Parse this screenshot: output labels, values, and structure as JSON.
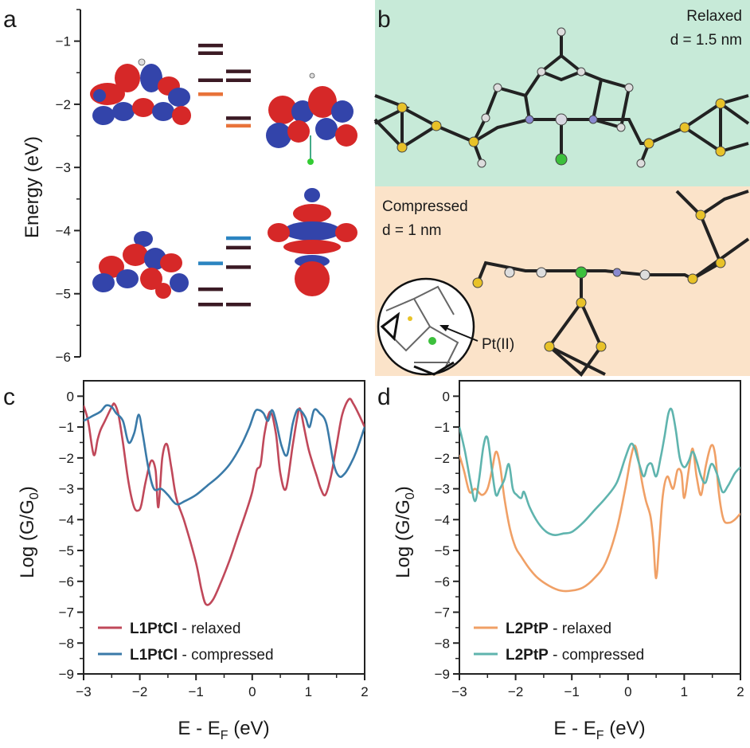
{
  "panels": {
    "a": "a",
    "b": "b",
    "c": "c",
    "d": "d"
  },
  "panel_a": {
    "ylabel": "Energy (eV)",
    "yticks": [
      -1,
      -2,
      -3,
      -4,
      -5,
      -6
    ],
    "ytick_labels": [
      "−1",
      "−2",
      "−3",
      "−4",
      "−5",
      "−6"
    ],
    "ylim": [
      -6,
      -0.5
    ],
    "levels_left": [
      {
        "e": -1.07,
        "color": "#3b1a24"
      },
      {
        "e": -1.19,
        "color": "#3b1a24"
      },
      {
        "e": -1.62,
        "color": "#3b1a24"
      },
      {
        "e": -1.84,
        "color": "#e8733a"
      },
      {
        "e": -4.52,
        "color": "#2b84c1"
      },
      {
        "e": -4.93,
        "color": "#3b1a24"
      },
      {
        "e": -5.17,
        "color": "#3b1a24"
      }
    ],
    "levels_right": [
      {
        "e": -1.48,
        "color": "#3b1a24"
      },
      {
        "e": -1.62,
        "color": "#3b1a24"
      },
      {
        "e": -2.22,
        "color": "#3b1a24"
      },
      {
        "e": -2.34,
        "color": "#e8733a"
      },
      {
        "e": -4.12,
        "color": "#2b84c1"
      },
      {
        "e": -4.27,
        "color": "#3b1a24"
      },
      {
        "e": -4.58,
        "color": "#3b1a24"
      },
      {
        "e": -5.17,
        "color": "#3b1a24"
      }
    ]
  },
  "panel_b": {
    "relaxed_label": "Relaxed",
    "relaxed_d": "d = 1.5 nm",
    "compressed_label": "Compressed",
    "compressed_d": "d = 1 nm",
    "pt_label": "Pt(II)",
    "relaxed_bg": "#c7ead8",
    "compressed_bg": "#fbe3c9"
  },
  "chart_data": [
    {
      "type": "line",
      "panel": "c",
      "xlabel_main": "E - E",
      "xlabel_sub": "F",
      "xlabel_unit": " (eV)",
      "ylabel_main": "Log (G/G",
      "ylabel_sub": "0",
      "ylabel_close": ")",
      "xlim": [
        -3,
        2
      ],
      "ylim": [
        -9,
        0.5
      ],
      "xticks": [
        -3,
        -2,
        -1,
        0,
        1,
        2
      ],
      "xtick_labels": [
        "−3",
        "−2",
        "−1",
        "0",
        "1",
        "2"
      ],
      "yticks": [
        0,
        -1,
        -2,
        -3,
        -4,
        -5,
        -6,
        -7,
        -8,
        -9
      ],
      "ytick_labels": [
        "0",
        "−1",
        "−2",
        "−3",
        "−4",
        "−5",
        "−6",
        "−7",
        "−8",
        "−9"
      ],
      "series": [
        {
          "name": "L1PtCl",
          "suffix": " - relaxed",
          "color": "#c0485a",
          "x": [
            -3.0,
            -2.92,
            -2.82,
            -2.75,
            -2.7,
            -2.62,
            -2.5,
            -2.45,
            -2.38,
            -2.3,
            -2.2,
            -2.1,
            -2.02,
            -1.97,
            -1.9,
            -1.8,
            -1.72,
            -1.67,
            -1.6,
            -1.52,
            -1.44,
            -1.35,
            -1.2,
            -1.0,
            -0.9,
            -0.82,
            -0.7,
            -0.55,
            -0.4,
            -0.25,
            -0.1,
            0.0,
            0.08,
            0.15,
            0.22,
            0.32,
            0.42,
            0.5,
            0.6,
            0.72,
            0.8,
            0.85,
            0.92,
            1.0,
            1.08,
            1.15,
            1.22,
            1.3,
            1.4,
            1.5,
            1.6,
            1.72,
            1.8,
            1.9,
            2.0
          ],
          "y": [
            -0.3,
            -0.8,
            -1.9,
            -1.4,
            -1.1,
            -0.8,
            -0.35,
            -0.25,
            -0.6,
            -1.5,
            -2.8,
            -3.6,
            -3.7,
            -3.5,
            -2.8,
            -2.1,
            -2.4,
            -3.6,
            -2.0,
            -1.55,
            -2.3,
            -3.3,
            -4.1,
            -5.4,
            -6.3,
            -6.75,
            -6.6,
            -6.0,
            -5.3,
            -4.5,
            -3.7,
            -3.1,
            -2.4,
            -2.2,
            -1.2,
            -0.5,
            -1.2,
            -2.5,
            -3.0,
            -1.6,
            -0.7,
            -0.4,
            -1.0,
            -1.7,
            -2.2,
            -2.6,
            -3.0,
            -3.2,
            -2.6,
            -1.6,
            -0.6,
            -0.1,
            -0.25,
            -0.6,
            -1.0
          ]
        },
        {
          "name": "L1PtCl",
          "suffix": " - compressed",
          "color": "#3a7aa8",
          "x": [
            -3.0,
            -2.85,
            -2.7,
            -2.6,
            -2.5,
            -2.42,
            -2.3,
            -2.2,
            -2.1,
            -2.02,
            -1.95,
            -1.85,
            -1.75,
            -1.62,
            -1.5,
            -1.35,
            -1.2,
            -1.0,
            -0.8,
            -0.6,
            -0.4,
            -0.2,
            -0.05,
            0.05,
            0.12,
            0.2,
            0.28,
            0.35,
            0.42,
            0.52,
            0.62,
            0.72,
            0.8,
            0.88,
            0.95,
            1.02,
            1.1,
            1.2,
            1.32,
            1.45,
            1.55,
            1.65,
            1.75,
            1.85,
            2.0
          ],
          "y": [
            -0.8,
            -0.65,
            -0.5,
            -0.3,
            -0.35,
            -0.55,
            -0.8,
            -1.5,
            -1.2,
            -0.6,
            -1.2,
            -2.3,
            -3.0,
            -3.0,
            -3.2,
            -3.5,
            -3.4,
            -3.2,
            -2.9,
            -2.6,
            -2.2,
            -1.6,
            -1.0,
            -0.5,
            -0.45,
            -0.55,
            -0.8,
            -0.45,
            -0.8,
            -1.6,
            -1.9,
            -0.9,
            -0.45,
            -0.5,
            -0.7,
            -1.0,
            -0.45,
            -0.55,
            -0.9,
            -2.2,
            -2.6,
            -2.5,
            -2.2,
            -1.8,
            -1.0
          ]
        }
      ]
    },
    {
      "type": "line",
      "panel": "d",
      "xlabel_main": "E - E",
      "xlabel_sub": "F",
      "xlabel_unit": " (eV)",
      "ylabel_main": "Log (G/G",
      "ylabel_sub": "0",
      "ylabel_close": ")",
      "xlim": [
        -3,
        2
      ],
      "ylim": [
        -9,
        0.5
      ],
      "xticks": [
        -3,
        -2,
        -1,
        0,
        1,
        2
      ],
      "xtick_labels": [
        "−3",
        "−2",
        "−1",
        "0",
        "1",
        "2"
      ],
      "yticks": [
        0,
        -1,
        -2,
        -3,
        -4,
        -5,
        -6,
        -7,
        -8,
        -9
      ],
      "ytick_labels": [
        "0",
        "−1",
        "−2",
        "−3",
        "−4",
        "−5",
        "−6",
        "−7",
        "−8",
        "−9"
      ],
      "series": [
        {
          "name": "L2PtP",
          "suffix": " - relaxed",
          "color": "#f0a066",
          "x": [
            -3.0,
            -2.92,
            -2.82,
            -2.72,
            -2.6,
            -2.5,
            -2.42,
            -2.35,
            -2.28,
            -2.2,
            -2.1,
            -2.0,
            -1.9,
            -1.75,
            -1.6,
            -1.4,
            -1.2,
            -1.0,
            -0.8,
            -0.6,
            -0.4,
            -0.2,
            -0.05,
            0.05,
            0.12,
            0.18,
            0.25,
            0.32,
            0.4,
            0.45,
            0.5,
            0.56,
            0.62,
            0.7,
            0.8,
            0.88,
            0.95,
            1.0,
            1.08,
            1.15,
            1.22,
            1.3,
            1.38,
            1.48,
            1.55,
            1.62,
            1.7,
            1.8,
            1.9,
            2.0
          ],
          "y": [
            -1.9,
            -2.4,
            -3.1,
            -3.0,
            -3.2,
            -3.0,
            -2.4,
            -1.8,
            -2.2,
            -3.3,
            -4.3,
            -4.9,
            -5.2,
            -5.6,
            -5.9,
            -6.15,
            -6.3,
            -6.3,
            -6.2,
            -5.9,
            -5.4,
            -4.3,
            -3.0,
            -2.0,
            -1.6,
            -2.0,
            -2.8,
            -3.4,
            -3.9,
            -4.7,
            -5.9,
            -4.6,
            -3.2,
            -2.6,
            -3.0,
            -2.4,
            -2.5,
            -3.3,
            -2.4,
            -1.7,
            -2.6,
            -3.2,
            -2.3,
            -1.6,
            -1.9,
            -3.2,
            -4.0,
            -4.1,
            -4.0,
            -3.8
          ]
        },
        {
          "name": "L2PtP",
          "suffix": " - compressed",
          "color": "#5fb4ae",
          "x": [
            -3.0,
            -2.9,
            -2.8,
            -2.72,
            -2.65,
            -2.57,
            -2.5,
            -2.42,
            -2.35,
            -2.28,
            -2.2,
            -2.12,
            -2.05,
            -1.98,
            -1.9,
            -1.85,
            -1.75,
            -1.6,
            -1.45,
            -1.3,
            -1.15,
            -1.0,
            -0.8,
            -0.6,
            -0.4,
            -0.2,
            -0.05,
            0.05,
            0.12,
            0.2,
            0.28,
            0.35,
            0.42,
            0.5,
            0.58,
            0.65,
            0.72,
            0.78,
            0.85,
            0.92,
            1.0,
            1.08,
            1.15,
            1.22,
            1.3,
            1.38,
            1.48,
            1.58,
            1.68,
            1.78,
            1.9,
            2.0
          ],
          "y": [
            -1.0,
            -1.8,
            -2.8,
            -3.4,
            -2.7,
            -1.6,
            -1.35,
            -2.4,
            -3.2,
            -3.0,
            -2.7,
            -2.2,
            -3.0,
            -3.2,
            -3.3,
            -3.1,
            -3.6,
            -4.1,
            -4.4,
            -4.5,
            -4.45,
            -4.4,
            -4.1,
            -3.7,
            -3.3,
            -2.8,
            -2.0,
            -1.55,
            -1.7,
            -2.2,
            -2.6,
            -2.25,
            -2.2,
            -2.6,
            -2.0,
            -1.3,
            -0.55,
            -0.45,
            -1.1,
            -2.0,
            -2.3,
            -2.1,
            -1.8,
            -2.1,
            -2.6,
            -2.8,
            -2.2,
            -2.5,
            -3.1,
            -2.9,
            -2.5,
            -2.3
          ]
        }
      ]
    }
  ]
}
